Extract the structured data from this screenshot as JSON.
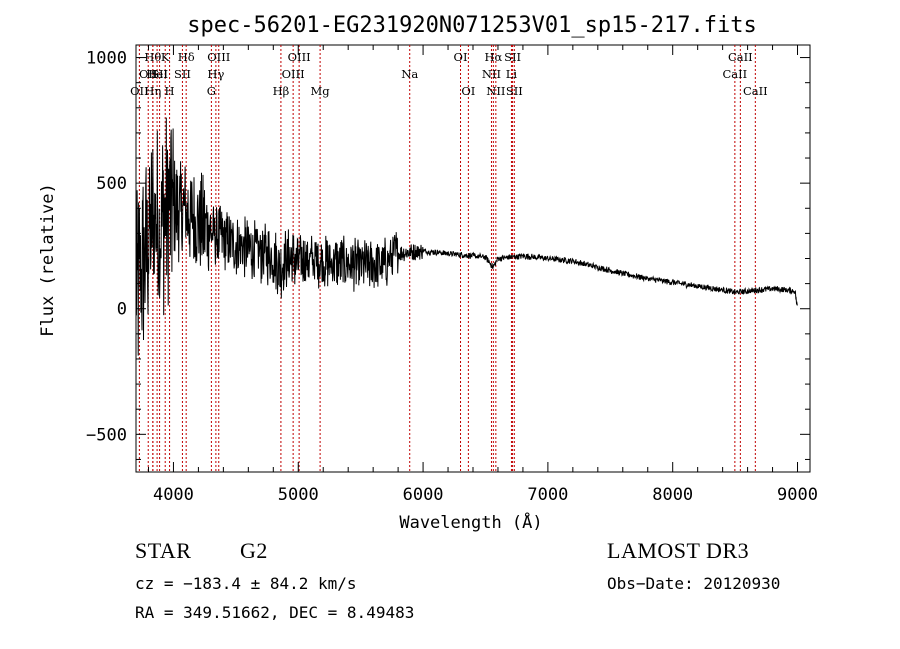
{
  "chart_data": {
    "type": "line",
    "title": "spec-56201-EG231920N071253V01_sp15-217.fits",
    "xlabel": "Wavelength (Å)",
    "ylabel": "Flux (relative)",
    "xlim": [
      3700,
      9100
    ],
    "ylim": [
      -650,
      1050
    ],
    "xticks": [
      4000,
      5000,
      6000,
      7000,
      8000,
      9000
    ],
    "yticks": [
      -500,
      0,
      500,
      1000
    ],
    "line_color": "#000000",
    "marker_color": "#c00000",
    "series": [
      {
        "name": "spectrum",
        "x": [
          3700,
          3740,
          3780,
          3820,
          3850,
          3880,
          3920,
          3950,
          3980,
          4020,
          4060,
          4100,
          4150,
          4200,
          4250,
          4300,
          4350,
          4400,
          4450,
          4500,
          4600,
          4700,
          4800,
          4860,
          4900,
          5000,
          5100,
          5200,
          5300,
          5400,
          5500,
          5600,
          5700,
          5750,
          5800,
          5900,
          6000,
          6100,
          6200,
          6300,
          6400,
          6500,
          6560,
          6600,
          6700,
          6800,
          6900,
          7000,
          7200,
          7400,
          7600,
          7800,
          8000,
          8200,
          8400,
          8500,
          8600,
          8700,
          8800,
          8900,
          8980,
          9000
        ],
        "y": [
          50,
          150,
          250,
          300,
          380,
          330,
          360,
          400,
          420,
          400,
          380,
          390,
          360,
          350,
          330,
          300,
          290,
          280,
          260,
          250,
          240,
          220,
          210,
          160,
          200,
          190,
          195,
          185,
          185,
          180,
          170,
          175,
          180,
          210,
          220,
          225,
          230,
          225,
          220,
          215,
          210,
          205,
          165,
          200,
          205,
          210,
          205,
          200,
          190,
          165,
          140,
          120,
          105,
          90,
          75,
          65,
          70,
          75,
          80,
          75,
          70,
          0
        ]
      }
    ],
    "line_markers": [
      {
        "x": 3727,
        "row": 2,
        "label": "OII"
      },
      {
        "x": 3798,
        "row": 1,
        "label": "OII"
      },
      {
        "x": 3835,
        "row": 0,
        "label": "Hθ"
      },
      {
        "x": 3835,
        "row": 2,
        "label": "Hη"
      },
      {
        "x": 3869,
        "row": 1,
        "label": "HeI"
      },
      {
        "x": 3889,
        "row": 1,
        "label": "SII"
      },
      {
        "x": 3934,
        "row": 0,
        "label": "K"
      },
      {
        "x": 3969,
        "row": 2,
        "label": "H"
      },
      {
        "x": 4102,
        "row": 0,
        "label": "Hδ"
      },
      {
        "x": 4072,
        "row": 1,
        "label": "SII"
      },
      {
        "x": 4304,
        "row": 2,
        "label": "G"
      },
      {
        "x": 4340,
        "row": 1,
        "label": "Hγ"
      },
      {
        "x": 4363,
        "row": 0,
        "label": "OIII"
      },
      {
        "x": 4861,
        "row": 2,
        "label": "Hβ"
      },
      {
        "x": 4959,
        "row": 1,
        "label": "OIII"
      },
      {
        "x": 5007,
        "row": 0,
        "label": "OIII"
      },
      {
        "x": 5175,
        "row": 2,
        "label": "Mg"
      },
      {
        "x": 5893,
        "row": 1,
        "label": "Na"
      },
      {
        "x": 6300,
        "row": 0,
        "label": "OI"
      },
      {
        "x": 6363,
        "row": 2,
        "label": "OI"
      },
      {
        "x": 6548,
        "row": 1,
        "label": "NII"
      },
      {
        "x": 6563,
        "row": 0,
        "label": "Hα"
      },
      {
        "x": 6583,
        "row": 2,
        "label": "NII"
      },
      {
        "x": 6708,
        "row": 1,
        "label": "Li"
      },
      {
        "x": 6717,
        "row": 0,
        "label": "SII"
      },
      {
        "x": 6731,
        "row": 2,
        "label": "SII"
      },
      {
        "x": 8498,
        "row": 1,
        "label": "CaII"
      },
      {
        "x": 8542,
        "row": 0,
        "label": "CaII"
      },
      {
        "x": 8662,
        "row": 2,
        "label": "CaII"
      }
    ]
  },
  "info": {
    "object_class": "STAR",
    "subclass": "G2",
    "survey": "LAMOST DR3",
    "redshift": "cz = −183.4 ± 84.2 km/s",
    "obs_date": "Obs−Date: 20120930",
    "coords": "RA = 349.51662, DEC =   8.49483"
  }
}
